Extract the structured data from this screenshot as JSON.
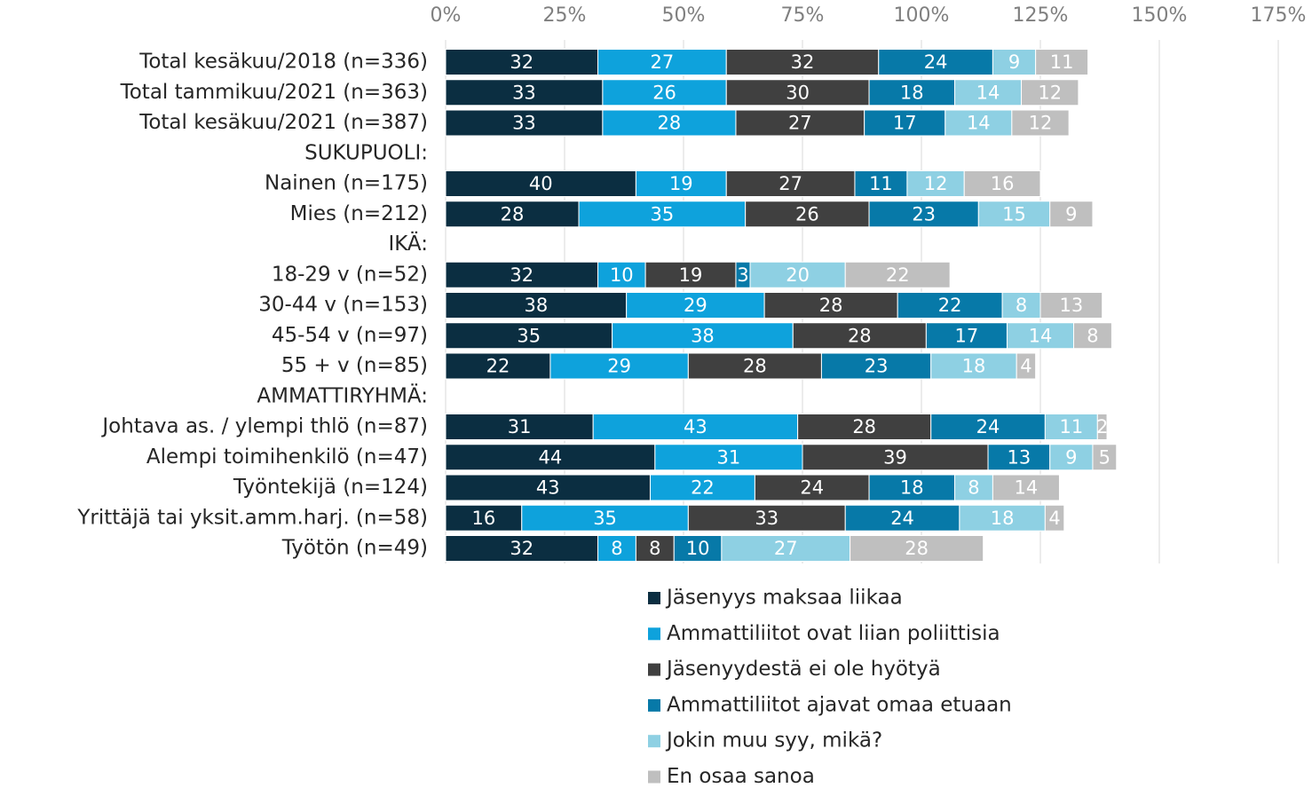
{
  "chart_data": {
    "type": "stacked_barh",
    "categories": [
      "Total kesäkuu/2018 (n=336)",
      "Total tammikuu/2021 (n=363)",
      "Total kesäkuu/2021 (n=387)",
      "SUKUPUOLI:",
      "Nainen (n=175)",
      "Mies (n=212)",
      "IKÄ:",
      "18-29 v (n=52)",
      "30-44 v (n=153)",
      "45-54 v (n=97)",
      "55 + v (n=85)",
      "AMMATTIRYHMÄ:",
      "Johtava as. / ylempi thlö (n=87)",
      "Alempi toimihenkilö (n=47)",
      "Työntekijä (n=124)",
      "Yrittäjä tai yksit.amm.harj. (n=58)",
      "Työtön (n=49)"
    ],
    "series": [
      {
        "name": "Jäsenyys maksaa liikaa",
        "color": "#0b2e41",
        "values": [
          32,
          33,
          33,
          null,
          40,
          28,
          null,
          32,
          38,
          35,
          22,
          null,
          31,
          44,
          43,
          16,
          32
        ]
      },
      {
        "name": "Ammattiliitot ovat liian poliittisia",
        "color": "#0ea2dc",
        "values": [
          27,
          26,
          28,
          null,
          19,
          35,
          null,
          10,
          29,
          38,
          29,
          null,
          43,
          31,
          22,
          35,
          8
        ]
      },
      {
        "name": "Jäsenyydestä ei ole hyötyä",
        "color": "#404040",
        "values": [
          32,
          30,
          27,
          null,
          27,
          26,
          null,
          19,
          28,
          28,
          28,
          null,
          28,
          39,
          24,
          33,
          8
        ]
      },
      {
        "name": "Ammattiliitot ajavat omaa etuaan",
        "color": "#0779a8",
        "values": [
          24,
          18,
          17,
          null,
          11,
          23,
          null,
          3,
          22,
          17,
          23,
          null,
          24,
          13,
          18,
          24,
          10
        ]
      },
      {
        "name": "Jokin muu syy, mikä?",
        "color": "#8ed0e3",
        "values": [
          9,
          14,
          14,
          null,
          12,
          15,
          null,
          20,
          8,
          14,
          18,
          null,
          11,
          9,
          8,
          18,
          27
        ]
      },
      {
        "name": "En osaa sanoa",
        "color": "#bfbfbf",
        "values": [
          11,
          12,
          12,
          null,
          16,
          9,
          null,
          22,
          13,
          8,
          4,
          null,
          2,
          5,
          14,
          4,
          28
        ]
      }
    ],
    "xlim": [
      0,
      175
    ],
    "xticks": [
      {
        "value": 0,
        "label": "0%"
      },
      {
        "value": 25,
        "label": "25%"
      },
      {
        "value": 50,
        "label": "50%"
      },
      {
        "value": 75,
        "label": "75%"
      },
      {
        "value": 100,
        "label": "100%"
      },
      {
        "value": 125,
        "label": "125%"
      },
      {
        "value": 150,
        "label": "150%"
      },
      {
        "value": 175,
        "label": "175%"
      }
    ],
    "grid": true,
    "legend": "bottom"
  }
}
